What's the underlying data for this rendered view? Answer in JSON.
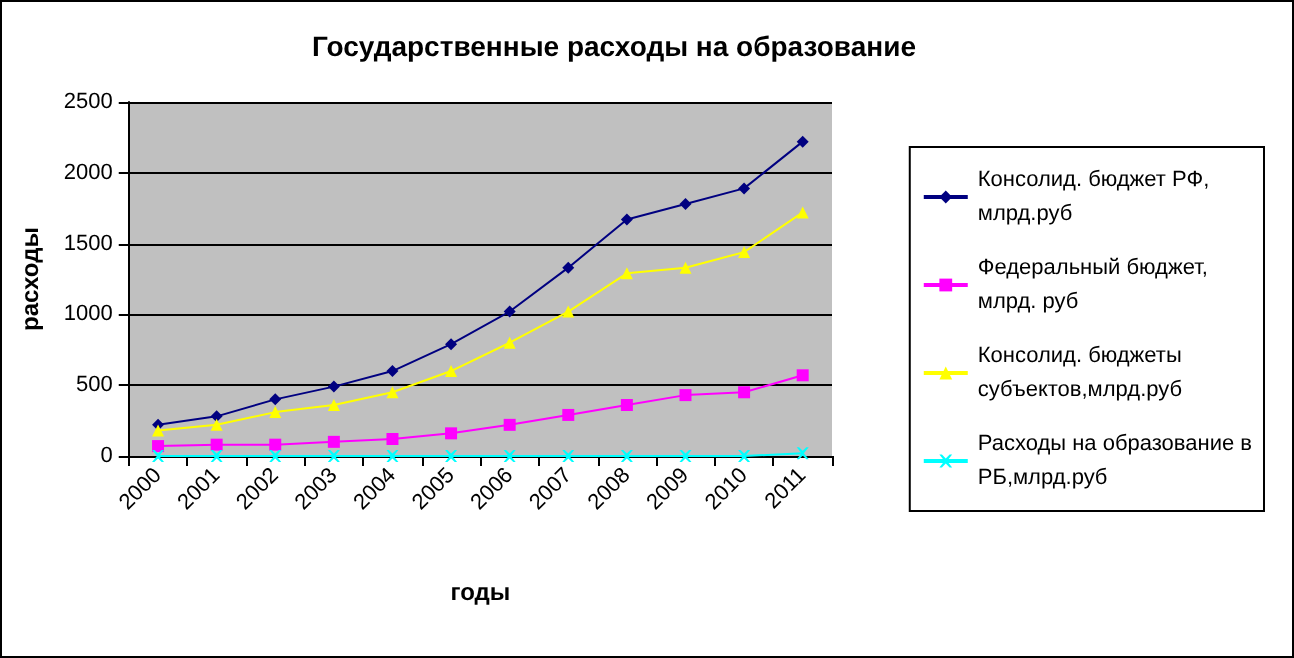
{
  "chart_data": {
    "type": "line",
    "title": "Государственные расходы на образование",
    "xlabel": "годы",
    "ylabel": "расходы",
    "categories": [
      "2000",
      "2001",
      "2002",
      "2003",
      "2004",
      "2005",
      "2006",
      "2007",
      "2008",
      "2009",
      "2010",
      "2011"
    ],
    "series": [
      {
        "name": "Консолид. бюджет РФ, млрд.руб",
        "color": "#000080",
        "marker": "diamond",
        "values": [
          220,
          280,
          400,
          490,
          600,
          790,
          1020,
          1330,
          1670,
          1780,
          1890,
          2220
        ]
      },
      {
        "name": "Федеральный бюджет, млрд. руб",
        "color": "#ff00ff",
        "marker": "square",
        "values": [
          70,
          80,
          80,
          100,
          120,
          160,
          220,
          290,
          360,
          430,
          450,
          570
        ]
      },
      {
        "name": "Консолид. бюджеты субъектов,млрд.руб",
        "color": "#ffff00",
        "marker": "triangle",
        "values": [
          180,
          220,
          310,
          360,
          450,
          600,
          800,
          1020,
          1290,
          1330,
          1440,
          1720
        ]
      },
      {
        "name": "Расходы на образование в РБ,млрд.руб",
        "color": "#00ffff",
        "marker": "cross",
        "values": [
          0,
          0,
          0,
          0,
          0,
          0,
          0,
          0,
          0,
          0,
          0,
          20
        ]
      }
    ],
    "ylim": [
      0,
      2500
    ],
    "yticks": [
      0,
      500,
      1000,
      1500,
      2000,
      2500
    ],
    "grid": "y",
    "legend": "right"
  }
}
